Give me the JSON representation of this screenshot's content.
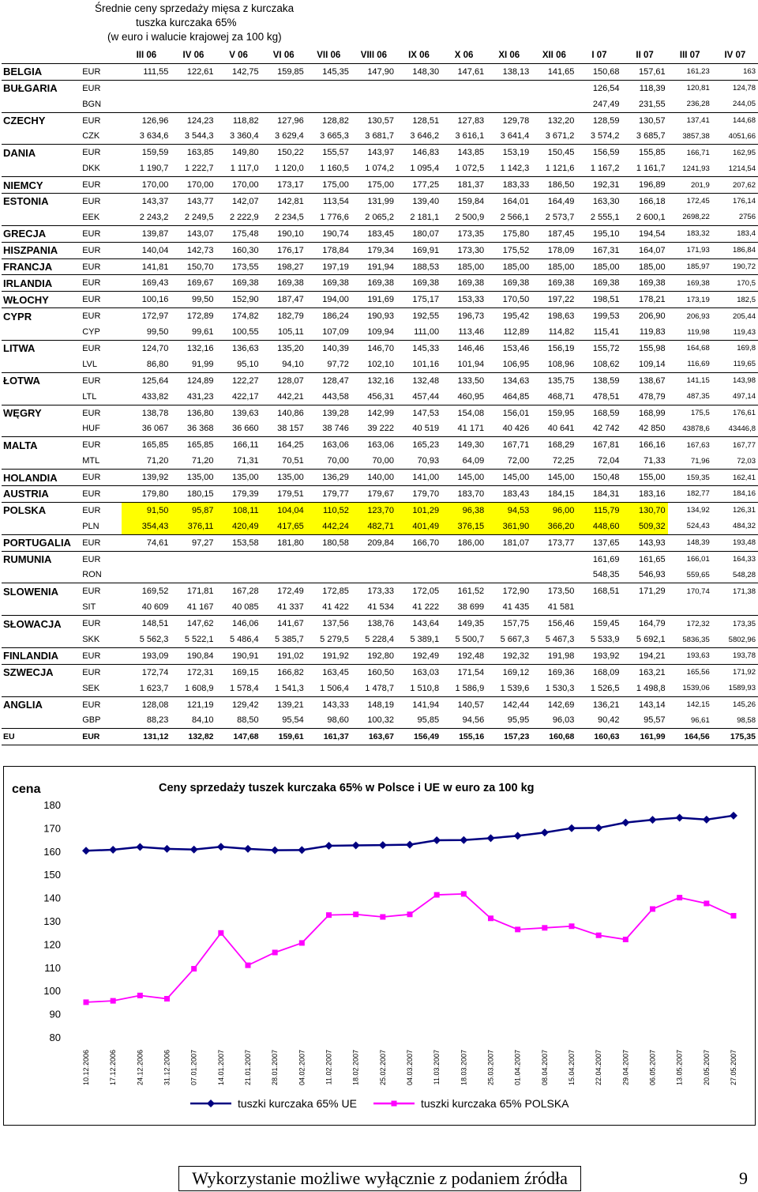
{
  "title_block": {
    "line1": "Średnie ceny sprzedaży mięsa z kurczaka",
    "line2": "tuszka kurczaka 65%",
    "line3": "(w euro i walucie krajowej za 100 kg)"
  },
  "table": {
    "months": [
      "III 06",
      "IV 06",
      "V 06",
      "VI 06",
      "VII 06",
      "VIII 06",
      "IX 06",
      "X 06",
      "XI 06",
      "XII 06",
      "I 07",
      "II 07",
      "III 07",
      "IV 07"
    ],
    "rows": [
      {
        "country": "BELGIA",
        "cur": "EUR",
        "vals": [
          "111,55",
          "122,61",
          "142,75",
          "159,85",
          "145,35",
          "147,90",
          "148,30",
          "147,61",
          "138,13",
          "141,65",
          "150,68",
          "157,61",
          "161,23",
          "163"
        ]
      },
      {
        "country": "BUŁGARIA",
        "cur": "EUR",
        "vals": [
          "",
          "",
          "",
          "",
          "",
          "",
          "",
          "",
          "",
          "",
          "126,54",
          "118,39",
          "120,81",
          "124,78"
        ]
      },
      {
        "country": "",
        "cur": "BGN",
        "vals": [
          "",
          "",
          "",
          "",
          "",
          "",
          "",
          "",
          "",
          "",
          "247,49",
          "231,55",
          "236,28",
          "244,05"
        ]
      },
      {
        "country": "CZECHY",
        "cur": "EUR",
        "vals": [
          "126,96",
          "124,23",
          "118,82",
          "127,96",
          "128,82",
          "130,57",
          "128,51",
          "127,83",
          "129,78",
          "132,20",
          "128,59",
          "130,57",
          "137,41",
          "144,68"
        ]
      },
      {
        "country": "",
        "cur": "CZK",
        "vals": [
          "3 634,6",
          "3 544,3",
          "3 360,4",
          "3 629,4",
          "3 665,3",
          "3 681,7",
          "3 646,2",
          "3 616,1",
          "3 641,4",
          "3 671,2",
          "3 574,2",
          "3 685,7",
          "3857,38",
          "4051,66"
        ]
      },
      {
        "country": "DANIA",
        "cur": "EUR",
        "vals": [
          "159,59",
          "163,85",
          "149,80",
          "150,22",
          "155,57",
          "143,97",
          "146,83",
          "143,85",
          "153,19",
          "150,45",
          "156,59",
          "155,85",
          "166,71",
          "162,95"
        ]
      },
      {
        "country": "",
        "cur": "DKK",
        "vals": [
          "1 190,7",
          "1 222,7",
          "1 117,0",
          "1 120,0",
          "1 160,5",
          "1 074,2",
          "1 095,4",
          "1 072,5",
          "1 142,3",
          "1 121,6",
          "1 167,2",
          "1 161,7",
          "1241,93",
          "1214,54"
        ]
      },
      {
        "country": "NIEMCY",
        "cur": "EUR",
        "vals": [
          "170,00",
          "170,00",
          "170,00",
          "173,17",
          "175,00",
          "175,00",
          "177,25",
          "181,37",
          "183,33",
          "186,50",
          "192,31",
          "196,89",
          "201,9",
          "207,62"
        ]
      },
      {
        "country": "ESTONIA",
        "cur": "EUR",
        "vals": [
          "143,37",
          "143,77",
          "142,07",
          "142,81",
          "113,54",
          "131,99",
          "139,40",
          "159,84",
          "164,01",
          "164,49",
          "163,30",
          "166,18",
          "172,45",
          "176,14"
        ]
      },
      {
        "country": "",
        "cur": "EEK",
        "vals": [
          "2 243,2",
          "2 249,5",
          "2 222,9",
          "2 234,5",
          "1 776,6",
          "2 065,2",
          "2 181,1",
          "2 500,9",
          "2 566,1",
          "2 573,7",
          "2 555,1",
          "2 600,1",
          "2698,22",
          "2756"
        ]
      },
      {
        "country": "GRECJA",
        "cur": "EUR",
        "vals": [
          "139,87",
          "143,07",
          "175,48",
          "190,10",
          "190,74",
          "183,45",
          "180,07",
          "173,35",
          "175,80",
          "187,45",
          "195,10",
          "194,54",
          "183,32",
          "183,4"
        ]
      },
      {
        "country": "HISZPANIA",
        "cur": "EUR",
        "vals": [
          "140,04",
          "142,73",
          "160,30",
          "176,17",
          "178,84",
          "179,34",
          "169,91",
          "173,30",
          "175,52",
          "178,09",
          "167,31",
          "164,07",
          "171,93",
          "186,84"
        ]
      },
      {
        "country": "FRANCJA",
        "cur": "EUR",
        "vals": [
          "141,81",
          "150,70",
          "173,55",
          "198,27",
          "197,19",
          "191,94",
          "188,53",
          "185,00",
          "185,00",
          "185,00",
          "185,00",
          "185,00",
          "185,97",
          "190,72"
        ]
      },
      {
        "country": "IRLANDIA",
        "cur": "EUR",
        "vals": [
          "169,43",
          "169,67",
          "169,38",
          "169,38",
          "169,38",
          "169,38",
          "169,38",
          "169,38",
          "169,38",
          "169,38",
          "169,38",
          "169,38",
          "169,38",
          "170,5"
        ]
      },
      {
        "country": "WŁOCHY",
        "cur": "EUR",
        "vals": [
          "100,16",
          "99,50",
          "152,90",
          "187,47",
          "194,00",
          "191,69",
          "175,17",
          "153,33",
          "170,50",
          "197,22",
          "198,51",
          "178,21",
          "173,19",
          "182,5"
        ]
      },
      {
        "country": "CYPR",
        "cur": "EUR",
        "vals": [
          "172,97",
          "172,89",
          "174,82",
          "182,79",
          "186,24",
          "190,93",
          "192,55",
          "196,73",
          "195,42",
          "198,63",
          "199,53",
          "206,90",
          "206,93",
          "205,44"
        ]
      },
      {
        "country": "",
        "cur": "CYP",
        "vals": [
          "99,50",
          "99,61",
          "100,55",
          "105,11",
          "107,09",
          "109,94",
          "111,00",
          "113,46",
          "112,89",
          "114,82",
          "115,41",
          "119,83",
          "119,98",
          "119,43"
        ]
      },
      {
        "country": "LITWA",
        "cur": "EUR",
        "vals": [
          "124,70",
          "132,16",
          "136,63",
          "135,20",
          "140,39",
          "146,70",
          "145,33",
          "146,46",
          "153,46",
          "156,19",
          "155,72",
          "155,98",
          "164,68",
          "169,8"
        ]
      },
      {
        "country": "",
        "cur": "LVL",
        "vals": [
          "86,80",
          "91,99",
          "95,10",
          "94,10",
          "97,72",
          "102,10",
          "101,16",
          "101,94",
          "106,95",
          "108,96",
          "108,62",
          "109,14",
          "116,69",
          "119,65"
        ]
      },
      {
        "country": "ŁOTWA",
        "cur": "EUR",
        "vals": [
          "125,64",
          "124,89",
          "122,27",
          "128,07",
          "128,47",
          "132,16",
          "132,48",
          "133,50",
          "134,63",
          "135,75",
          "138,59",
          "138,67",
          "141,15",
          "143,98"
        ]
      },
      {
        "country": "",
        "cur": "LTL",
        "vals": [
          "433,82",
          "431,23",
          "422,17",
          "442,21",
          "443,58",
          "456,31",
          "457,44",
          "460,95",
          "464,85",
          "468,71",
          "478,51",
          "478,79",
          "487,35",
          "497,14"
        ]
      },
      {
        "country": "WĘGRY",
        "cur": "EUR",
        "vals": [
          "138,78",
          "136,80",
          "139,63",
          "140,86",
          "139,28",
          "142,99",
          "147,53",
          "154,08",
          "156,01",
          "159,95",
          "168,59",
          "168,99",
          "175,5",
          "176,61"
        ]
      },
      {
        "country": "",
        "cur": "HUF",
        "vals": [
          "36 067",
          "36 368",
          "36 660",
          "38 157",
          "38 746",
          "39 222",
          "40 519",
          "41 171",
          "40 426",
          "40 641",
          "42 742",
          "42 850",
          "43878,6",
          "43446,8"
        ]
      },
      {
        "country": "MALTA",
        "cur": "EUR",
        "vals": [
          "165,85",
          "165,85",
          "166,11",
          "164,25",
          "163,06",
          "163,06",
          "165,23",
          "149,30",
          "167,71",
          "168,29",
          "167,81",
          "166,16",
          "167,63",
          "167,77"
        ]
      },
      {
        "country": "",
        "cur": "MTL",
        "vals": [
          "71,20",
          "71,20",
          "71,31",
          "70,51",
          "70,00",
          "70,00",
          "70,93",
          "64,09",
          "72,00",
          "72,25",
          "72,04",
          "71,33",
          "71,96",
          "72,03"
        ]
      },
      {
        "country": "HOLANDIA",
        "cur": "EUR",
        "vals": [
          "139,92",
          "135,00",
          "135,00",
          "135,00",
          "136,29",
          "140,00",
          "141,00",
          "145,00",
          "145,00",
          "145,00",
          "150,48",
          "155,00",
          "159,35",
          "162,41"
        ]
      },
      {
        "country": "AUSTRIA",
        "cur": "EUR",
        "vals": [
          "179,80",
          "180,15",
          "179,39",
          "179,51",
          "179,77",
          "179,67",
          "179,70",
          "183,70",
          "183,43",
          "184,15",
          "184,31",
          "183,16",
          "182,77",
          "184,16"
        ]
      },
      {
        "country": "POLSKA",
        "cur": "EUR",
        "vals": [
          "91,50",
          "95,87",
          "108,11",
          "104,04",
          "110,52",
          "123,70",
          "101,29",
          "96,38",
          "94,53",
          "96,00",
          "115,79",
          "130,70",
          "134,92",
          "126,31"
        ],
        "hl": 12
      },
      {
        "country": "",
        "cur": "PLN",
        "vals": [
          "354,43",
          "376,11",
          "420,49",
          "417,65",
          "442,24",
          "482,71",
          "401,49",
          "376,15",
          "361,90",
          "366,20",
          "448,60",
          "509,32",
          "524,43",
          "484,32"
        ],
        "hl": 12
      },
      {
        "country": "PORTUGALIA",
        "cur": "EUR",
        "vals": [
          "74,61",
          "97,27",
          "153,58",
          "181,80",
          "180,58",
          "209,84",
          "166,70",
          "186,00",
          "181,07",
          "173,77",
          "137,65",
          "143,93",
          "148,39",
          "193,48"
        ]
      },
      {
        "country": "RUMUNIA",
        "cur": "EUR",
        "vals": [
          "",
          "",
          "",
          "",
          "",
          "",
          "",
          "",
          "",
          "",
          "161,69",
          "161,65",
          "166,01",
          "164,33"
        ]
      },
      {
        "country": "",
        "cur": "RON",
        "vals": [
          "",
          "",
          "",
          "",
          "",
          "",
          "",
          "",
          "",
          "",
          "548,35",
          "546,93",
          "559,65",
          "548,28"
        ]
      },
      {
        "country": "SLOWENIA",
        "cur": "EUR",
        "vals": [
          "169,52",
          "171,81",
          "167,28",
          "172,49",
          "172,85",
          "173,33",
          "172,05",
          "161,52",
          "172,90",
          "173,50",
          "168,51",
          "171,29",
          "170,74",
          "171,38"
        ]
      },
      {
        "country": "",
        "cur": "SIT",
        "vals": [
          "40 609",
          "41 167",
          "40 085",
          "41 337",
          "41 422",
          "41 534",
          "41 222",
          "38 699",
          "41 435",
          "41 581",
          "",
          "",
          "",
          ""
        ]
      },
      {
        "country": "SŁOWACJA",
        "cur": "EUR",
        "vals": [
          "148,51",
          "147,62",
          "146,06",
          "141,67",
          "137,56",
          "138,76",
          "143,64",
          "149,35",
          "157,75",
          "156,46",
          "159,45",
          "164,79",
          "172,32",
          "173,35"
        ]
      },
      {
        "country": "",
        "cur": "SKK",
        "vals": [
          "5 562,3",
          "5 522,1",
          "5 486,4",
          "5 385,7",
          "5 279,5",
          "5 228,4",
          "5 389,1",
          "5 500,7",
          "5 667,3",
          "5 467,3",
          "5 533,9",
          "5 692,1",
          "5836,35",
          "5802,96"
        ]
      },
      {
        "country": "FINLANDIA",
        "cur": "EUR",
        "vals": [
          "193,09",
          "190,84",
          "190,91",
          "191,02",
          "191,92",
          "192,80",
          "192,49",
          "192,48",
          "192,32",
          "191,98",
          "193,92",
          "194,21",
          "193,63",
          "193,78"
        ]
      },
      {
        "country": "SZWECJA",
        "cur": "EUR",
        "vals": [
          "172,74",
          "172,31",
          "169,15",
          "166,82",
          "163,45",
          "160,50",
          "163,03",
          "171,54",
          "169,12",
          "169,36",
          "168,09",
          "163,21",
          "165,56",
          "171,92"
        ]
      },
      {
        "country": "",
        "cur": "SEK",
        "vals": [
          "1 623,7",
          "1 608,9",
          "1 578,4",
          "1 541,3",
          "1 506,4",
          "1 478,7",
          "1 510,8",
          "1 586,9",
          "1 539,6",
          "1 530,3",
          "1 526,5",
          "1 498,8",
          "1539,06",
          "1589,93"
        ]
      },
      {
        "country": "ANGLIA",
        "cur": "EUR",
        "vals": [
          "128,08",
          "121,19",
          "129,42",
          "139,21",
          "143,33",
          "148,19",
          "141,94",
          "140,57",
          "142,44",
          "142,69",
          "136,21",
          "143,14",
          "142,15",
          "145,26"
        ]
      },
      {
        "country": "",
        "cur": "GBP",
        "vals": [
          "88,23",
          "84,10",
          "88,50",
          "95,54",
          "98,60",
          "100,32",
          "95,85",
          "94,56",
          "95,95",
          "96,03",
          "90,42",
          "95,57",
          "96,61",
          "98,58"
        ]
      },
      {
        "country": "EU",
        "cur": "EUR",
        "vals": [
          "131,12",
          "132,82",
          "147,68",
          "159,61",
          "161,37",
          "163,67",
          "156,49",
          "155,16",
          "157,23",
          "160,68",
          "160,63",
          "161,99",
          "164,56",
          "175,35"
        ],
        "eu": true
      }
    ]
  },
  "chart_data": {
    "type": "line",
    "title": "Ceny sprzedaży tuszek kurczaka 65% w Polsce i UE w euro za 100 kg",
    "ylabel": "cena",
    "ylim": [
      80,
      180
    ],
    "yticks": [
      80,
      90,
      100,
      110,
      120,
      130,
      140,
      150,
      160,
      170,
      180
    ],
    "grid": false,
    "legend_position": "bottom",
    "x": [
      "10.12.2006",
      "17.12.2006",
      "24.12.2006",
      "31.12.2006",
      "07.01.2007",
      "14.01.2007",
      "21.01.2007",
      "28.01.2007",
      "04.02.2007",
      "11.02.2007",
      "18.02.2007",
      "25.02.2007",
      "04.03.2007",
      "11.03.2007",
      "18.03.2007",
      "25.03.2007",
      "01.04.2007",
      "08.04.2007",
      "15.04.2007",
      "22.04.2007",
      "29.04.2007",
      "06.05.2007",
      "13.05.2007",
      "20.05.2007",
      "27.05.2007"
    ],
    "series": [
      {
        "name": "tuszki kurczaka 65% UE",
        "color": "#000080",
        "marker": "diamond",
        "values": [
          160.2,
          160.6,
          161.8,
          161.0,
          160.7,
          161.9,
          161.0,
          160.4,
          160.5,
          162.3,
          162.5,
          162.6,
          162.8,
          164.7,
          164.8,
          165.6,
          166.6,
          168.0,
          169.9,
          170.0,
          172.3,
          173.5,
          174.4,
          173.6,
          175.3
        ]
      },
      {
        "name": "tuszki kurczaka 65% POLSKA",
        "color": "#ff00ff",
        "marker": "square",
        "values": [
          95.0,
          95.6,
          97.9,
          96.5,
          109.4,
          124.8,
          110.9,
          116.4,
          120.5,
          132.5,
          132.8,
          131.7,
          132.8,
          141.2,
          141.6,
          131.1,
          126.3,
          127.0,
          127.7,
          123.8,
          122.0,
          135.1,
          140.0,
          137.5,
          132.2
        ]
      }
    ]
  },
  "footer": {
    "text": "Wykorzystanie możliwe wyłącznie z podaniem źródła",
    "page": "9"
  }
}
